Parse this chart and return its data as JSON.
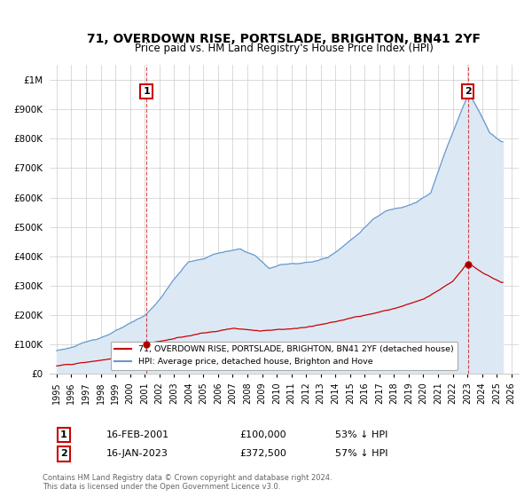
{
  "title": "71, OVERDOWN RISE, PORTSLADE, BRIGHTON, BN41 2YF",
  "subtitle": "Price paid vs. HM Land Registry's House Price Index (HPI)",
  "hpi_label": "HPI: Average price, detached house, Brighton and Hove",
  "price_label": "71, OVERDOWN RISE, PORTSLADE, BRIGHTON, BN41 2YF (detached house)",
  "hpi_color": "#6699cc",
  "hpi_fill_color": "#dce9f5",
  "price_color": "#cc0000",
  "annotation1_date": "16-FEB-2001",
  "annotation1_price": "£100,000",
  "annotation1_pct": "53% ↓ HPI",
  "annotation1_year": 2001.12,
  "annotation1_price_val": 100000,
  "annotation2_date": "16-JAN-2023",
  "annotation2_price": "£372,500",
  "annotation2_pct": "57% ↓ HPI",
  "annotation2_year": 2023.04,
  "annotation2_price_val": 372500,
  "footer": "Contains HM Land Registry data © Crown copyright and database right 2024.\nThis data is licensed under the Open Government Licence v3.0.",
  "ylim": [
    0,
    1050000
  ],
  "yticks": [
    0,
    100000,
    200000,
    300000,
    400000,
    500000,
    600000,
    700000,
    800000,
    900000,
    1000000
  ],
  "xlim_start": 1994.5,
  "xlim_end": 2026.5
}
